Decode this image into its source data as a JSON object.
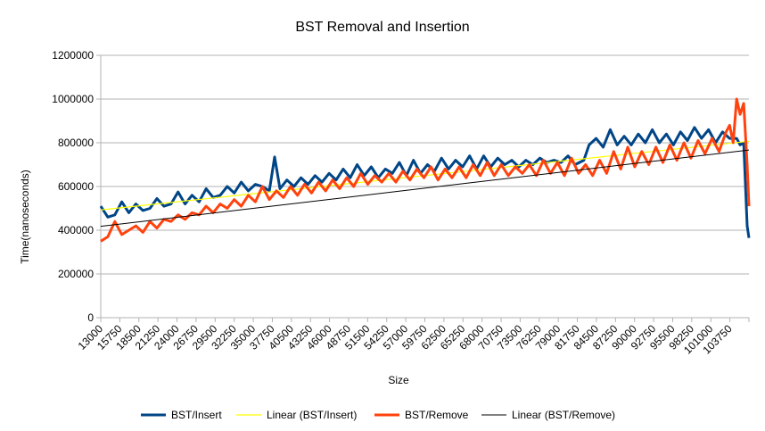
{
  "chart_data": {
    "type": "line",
    "title": "BST Removal and Insertion",
    "xlabel": "Size",
    "ylabel": "Time(nanoseconds)",
    "ylim": [
      0,
      1200000
    ],
    "y_ticks": [
      "0",
      "200000",
      "400000",
      "600000",
      "800000",
      "1000000",
      "1200000"
    ],
    "x_tick_labels": [
      "13000",
      "15750",
      "18500",
      "21250",
      "24000",
      "26750",
      "29500",
      "32250",
      "35000",
      "37750",
      "40500",
      "43250",
      "46000",
      "48750",
      "51500",
      "54250",
      "57000",
      "59750",
      "62500",
      "65250",
      "68000",
      "70750",
      "73500",
      "76250",
      "79000",
      "81750",
      "84500",
      "87250",
      "90000",
      "92750",
      "95500",
      "98250",
      "101000",
      "103750"
    ],
    "x_range": [
      13000,
      105250
    ],
    "grid": "horizontal",
    "legend_position": "bottom",
    "colors": {
      "insert": "#004586",
      "insert_trend": "#ffff00",
      "remove": "#ff420e",
      "remove_trend": "#000000",
      "gridline": "#b3b3b3"
    },
    "trendlines": [
      {
        "name": "Linear (BST/Insert)",
        "x": [
          13000,
          105250
        ],
        "y": [
          493000,
          807000
        ]
      },
      {
        "name": "Linear (BST/Remove)",
        "x": [
          13000,
          105250
        ],
        "y": [
          418000,
          767000
        ]
      }
    ],
    "series": [
      {
        "name": "BST/Insert",
        "x": [
          13000,
          14000,
          15000,
          16000,
          17000,
          18000,
          19000,
          20000,
          21000,
          22000,
          23000,
          24000,
          25000,
          26000,
          27000,
          28000,
          29000,
          30000,
          31000,
          32000,
          33000,
          34000,
          35000,
          36000,
          37000,
          37750,
          38500,
          39500,
          40500,
          41500,
          42500,
          43500,
          44500,
          45500,
          46500,
          47500,
          48500,
          49500,
          50500,
          51500,
          52500,
          53500,
          54500,
          55500,
          56500,
          57500,
          58500,
          59500,
          60500,
          61500,
          62500,
          63500,
          64500,
          65500,
          66500,
          67500,
          68500,
          69500,
          70500,
          71500,
          72500,
          73500,
          74500,
          75500,
          76500,
          77500,
          78500,
          79500,
          80500,
          81750,
          82500,
          83500,
          84500,
          85500,
          86500,
          87500,
          88500,
          89500,
          90500,
          91500,
          92500,
          93500,
          94500,
          95500,
          96500,
          97500,
          98500,
          99500,
          100500,
          101500,
          102500,
          103500,
          104000,
          104500,
          105000,
          105250
        ],
        "y": [
          510000,
          460000,
          470000,
          530000,
          480000,
          520000,
          490000,
          500000,
          545000,
          510000,
          520000,
          575000,
          520000,
          560000,
          530000,
          590000,
          550000,
          560000,
          600000,
          570000,
          620000,
          580000,
          610000,
          600000,
          580000,
          735000,
          590000,
          630000,
          600000,
          640000,
          610000,
          650000,
          620000,
          660000,
          630000,
          680000,
          640000,
          700000,
          650000,
          690000,
          640000,
          680000,
          660000,
          710000,
          650000,
          720000,
          660000,
          700000,
          670000,
          730000,
          680000,
          720000,
          690000,
          740000,
          680000,
          740000,
          690000,
          730000,
          700000,
          720000,
          690000,
          720000,
          700000,
          730000,
          710000,
          720000,
          710000,
          740000,
          700000,
          720000,
          790000,
          820000,
          780000,
          860000,
          790000,
          830000,
          790000,
          840000,
          800000,
          860000,
          800000,
          840000,
          790000,
          850000,
          810000,
          870000,
          820000,
          860000,
          800000,
          850000,
          820000,
          820000,
          790000,
          800000,
          420000,
          365000
        ]
      },
      {
        "name": "BST/Remove",
        "x": [
          13000,
          14000,
          15000,
          16000,
          17000,
          18000,
          19000,
          20000,
          21000,
          22000,
          23000,
          24000,
          25000,
          26000,
          27000,
          28000,
          29000,
          30000,
          31000,
          32000,
          33000,
          34000,
          35000,
          36000,
          37000,
          38000,
          39000,
          40000,
          41000,
          42000,
          43000,
          44000,
          45000,
          46000,
          47000,
          48000,
          49000,
          50000,
          51000,
          52000,
          53000,
          54000,
          55000,
          56000,
          57000,
          58000,
          59000,
          60000,
          61000,
          62000,
          63000,
          64000,
          65000,
          66000,
          67000,
          68000,
          69000,
          70000,
          71000,
          72000,
          73000,
          74000,
          75000,
          76000,
          77000,
          78000,
          79000,
          80000,
          81000,
          82000,
          83000,
          84000,
          85000,
          86000,
          87000,
          88000,
          89000,
          90000,
          91000,
          92000,
          93000,
          94000,
          95000,
          96000,
          97000,
          98000,
          99000,
          100000,
          101000,
          102000,
          102500,
          103000,
          103500,
          104000,
          104500,
          105000,
          105250
        ],
        "y": [
          350000,
          370000,
          440000,
          380000,
          400000,
          420000,
          390000,
          440000,
          410000,
          450000,
          440000,
          470000,
          450000,
          480000,
          470000,
          510000,
          480000,
          520000,
          500000,
          540000,
          510000,
          560000,
          530000,
          600000,
          540000,
          580000,
          550000,
          600000,
          560000,
          610000,
          570000,
          620000,
          580000,
          630000,
          590000,
          640000,
          600000,
          660000,
          610000,
          650000,
          620000,
          660000,
          620000,
          670000,
          630000,
          680000,
          640000,
          690000,
          630000,
          680000,
          640000,
          690000,
          640000,
          700000,
          650000,
          710000,
          650000,
          700000,
          650000,
          690000,
          660000,
          700000,
          650000,
          720000,
          660000,
          710000,
          650000,
          730000,
          660000,
          700000,
          650000,
          720000,
          660000,
          760000,
          680000,
          780000,
          690000,
          760000,
          700000,
          780000,
          710000,
          790000,
          720000,
          800000,
          730000,
          810000,
          750000,
          820000,
          760000,
          850000,
          880000,
          800000,
          1000000,
          930000,
          980000,
          700000,
          510000
        ]
      }
    ]
  }
}
